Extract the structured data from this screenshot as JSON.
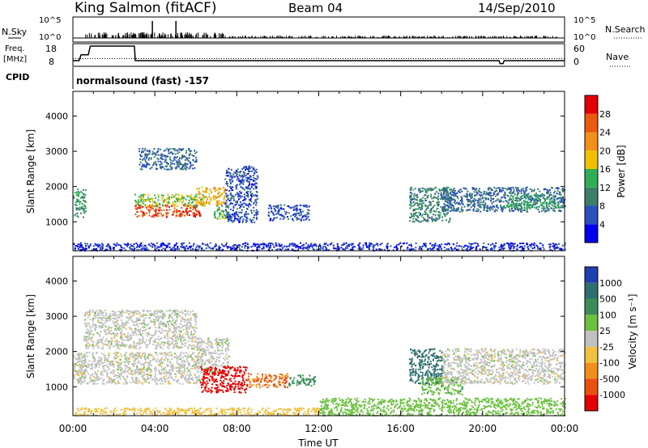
{
  "header": {
    "station": "King Salmon (fitACF)",
    "beam": "Beam 04",
    "date": "14/Sep/2010"
  },
  "summary_panels": {
    "nsky_label": "N.Sky",
    "nsky_ticks": [
      "10^5",
      "10^0"
    ],
    "nsearch_label": "N.Search",
    "nsearch_ticks": [
      "10^5",
      "10^0"
    ],
    "freq_label": "Freq.",
    "freq_unit": "[MHz]",
    "freq_ticks": [
      "18",
      "8"
    ],
    "nave_label": "Nave",
    "nave_ticks": [
      "60",
      "0"
    ],
    "cpid_label": "CPID",
    "cpid_text": "normalsound (fast) -157",
    "freq_profile_mhz": [
      {
        "t": 0.0,
        "f": 10.5
      },
      {
        "t": 0.3,
        "f": 10.5
      },
      {
        "t": 0.4,
        "f": 13.5
      },
      {
        "t": 0.75,
        "f": 13.5
      },
      {
        "t": 0.85,
        "f": 18
      },
      {
        "t": 3.0,
        "f": 18
      },
      {
        "t": 3.05,
        "f": 10.5
      },
      {
        "t": 20.8,
        "f": 10.5
      },
      {
        "t": 20.85,
        "f": 9.0
      },
      {
        "t": 21.0,
        "f": 9.0
      },
      {
        "t": 21.05,
        "f": 10.5
      },
      {
        "t": 24.0,
        "f": 10.5
      }
    ]
  },
  "chart_data": [
    {
      "type": "heatmap",
      "title": "Power",
      "xlabel": "",
      "ylabel": "Slant Range [km]",
      "x_ticks": [
        "00:00",
        "04:00",
        "08:00",
        "12:00",
        "16:00",
        "20:00",
        "00:00"
      ],
      "xlim_hours": [
        0,
        24
      ],
      "y_ticks": [
        1000,
        2000,
        3000,
        4000
      ],
      "ylim": [
        180,
        4700
      ],
      "colorbar_label": "Power [dB]",
      "colorbar_ticks": [
        4,
        8,
        12,
        16,
        20,
        24,
        28
      ],
      "colorbar_range": [
        0,
        32
      ],
      "colors": [
        "#0000ee",
        "#2c4fbe",
        "#3c7f68",
        "#2fae57",
        "#f0c000",
        "#f29018",
        "#ea5a10",
        "#e40000"
      ],
      "echo_regions": [
        {
          "t0": 0.0,
          "t1": 0.6,
          "r0": 1150,
          "r1": 1950,
          "value": 12
        },
        {
          "t0": 3.0,
          "t1": 6.2,
          "r0": 1150,
          "r1": 1500,
          "value": 27
        },
        {
          "t0": 3.0,
          "t1": 6.5,
          "r0": 1450,
          "r1": 1800,
          "value": 16
        },
        {
          "t0": 3.2,
          "t1": 6.0,
          "r0": 2500,
          "r1": 3100,
          "value": 8
        },
        {
          "t0": 6.0,
          "t1": 7.4,
          "r0": 1500,
          "r1": 2000,
          "value": 20
        },
        {
          "t0": 6.8,
          "t1": 7.6,
          "r0": 1100,
          "r1": 1500,
          "value": 14
        },
        {
          "t0": 7.4,
          "t1": 9.0,
          "r0": 1000,
          "r1": 2600,
          "value": 6
        },
        {
          "t0": 9.5,
          "t1": 11.5,
          "r0": 1050,
          "r1": 1500,
          "value": 6
        },
        {
          "t0": 16.4,
          "t1": 18.4,
          "r0": 1000,
          "r1": 2000,
          "value": 10
        },
        {
          "t0": 18.0,
          "t1": 24.0,
          "r0": 1300,
          "r1": 2000,
          "value": 8
        },
        {
          "t0": 21.0,
          "t1": 23.8,
          "r0": 1400,
          "r1": 1800,
          "value": 13
        },
        {
          "t0": 0.0,
          "t1": 24.0,
          "r0": 200,
          "r1": 420,
          "value": 4
        }
      ]
    },
    {
      "type": "heatmap",
      "title": "Velocity",
      "xlabel": "Time UT",
      "ylabel": "Slant Range [km]",
      "x_ticks": [
        "00:00",
        "04:00",
        "08:00",
        "12:00",
        "16:00",
        "20:00",
        "00:00"
      ],
      "xlim_hours": [
        0,
        24
      ],
      "y_ticks": [
        1000,
        2000,
        3000,
        4000
      ],
      "ylim": [
        180,
        4700
      ],
      "colorbar_label": "Velocity [m s⁻¹]",
      "colorbar_ticks": [
        "1000",
        "500",
        "100",
        "25",
        "-25",
        "-100",
        "-500",
        "-1000"
      ],
      "colorbar_range": [
        -1000,
        1000
      ],
      "colors": [
        "#2040b0",
        "#2e6f6f",
        "#3a8d5a",
        "#6cc040",
        "#c0c0c0",
        "#f0c040",
        "#f0901a",
        "#ea5010",
        "#e40000"
      ],
      "echo_regions": [
        {
          "t0": 0.0,
          "t1": 0.6,
          "r0": 1150,
          "r1": 1950,
          "value": 0
        },
        {
          "t0": 0.2,
          "t1": 6.2,
          "r0": 1100,
          "r1": 2000,
          "value": 0
        },
        {
          "t0": 0.5,
          "t1": 6.0,
          "r0": 2100,
          "r1": 3200,
          "value": 0
        },
        {
          "t0": 6.0,
          "t1": 7.6,
          "r0": 1400,
          "r1": 2400,
          "value": 0
        },
        {
          "t0": 6.2,
          "t1": 8.5,
          "r0": 850,
          "r1": 1600,
          "value": -700
        },
        {
          "t0": 8.5,
          "t1": 10.5,
          "r0": 1000,
          "r1": 1400,
          "value": -400
        },
        {
          "t0": 10.5,
          "t1": 11.8,
          "r0": 1050,
          "r1": 1350,
          "value": 150
        },
        {
          "t0": 16.4,
          "t1": 18.0,
          "r0": 1100,
          "r1": 2100,
          "value": 300
        },
        {
          "t0": 17.0,
          "t1": 19.0,
          "r0": 800,
          "r1": 1300,
          "value": 80
        },
        {
          "t0": 18.0,
          "t1": 24.0,
          "r0": 1100,
          "r1": 2100,
          "value": 0
        },
        {
          "t0": 0.0,
          "t1": 12.0,
          "r0": 200,
          "r1": 420,
          "value": -60
        },
        {
          "t0": 12.0,
          "t1": 24.0,
          "r0": 200,
          "r1": 700,
          "value": 60
        }
      ]
    }
  ]
}
